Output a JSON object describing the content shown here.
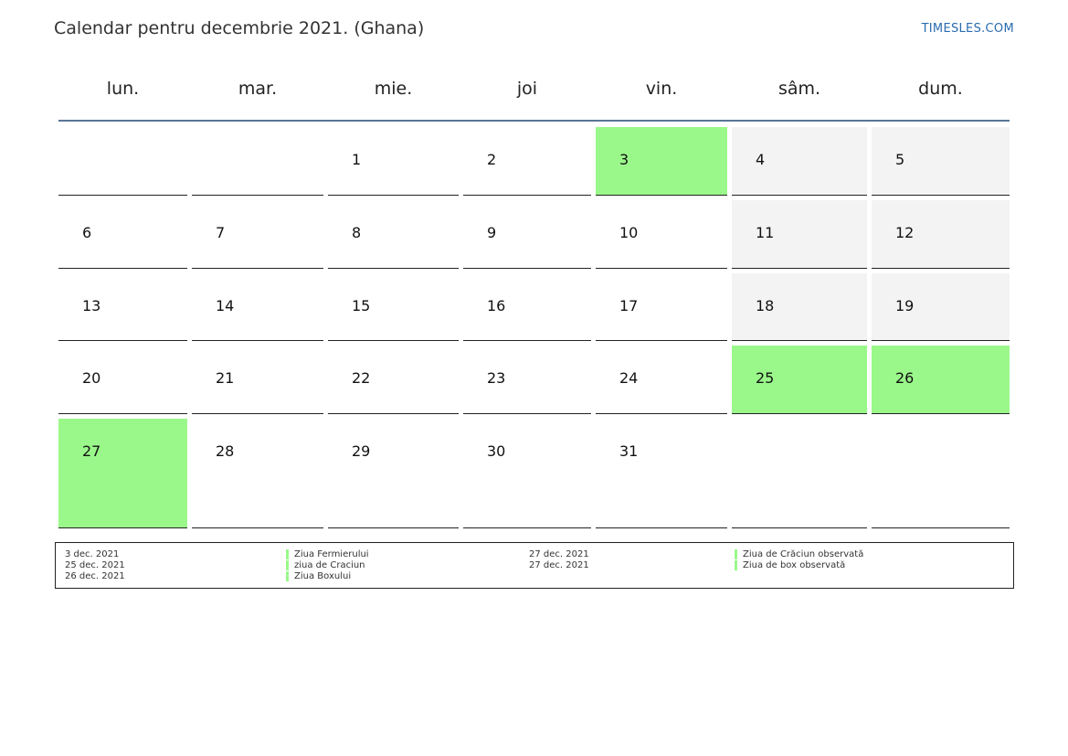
{
  "header": {
    "title": "Calendar pentru decembrie 2021. (Ghana)",
    "brand": "TIMESLES.COM"
  },
  "weekdays": [
    "lun.",
    "mar.",
    "mie.",
    "joi",
    "vin.",
    "sâm.",
    "dum."
  ],
  "weeks": [
    [
      "",
      "",
      "1",
      "2",
      "3",
      "4",
      "5"
    ],
    [
      "6",
      "7",
      "8",
      "9",
      "10",
      "11",
      "12"
    ],
    [
      "13",
      "14",
      "15",
      "16",
      "17",
      "18",
      "19"
    ],
    [
      "20",
      "21",
      "22",
      "23",
      "24",
      "25",
      "26"
    ],
    [
      "27",
      "28",
      "29",
      "30",
      "31",
      "",
      ""
    ]
  ],
  "holiday_days": [
    "3",
    "25",
    "26",
    "27"
  ],
  "colors": {
    "holiday": "#9af88a",
    "weekend": "#f3f3f3",
    "header_rule": "#5a7596"
  },
  "legend": {
    "left": [
      {
        "date": "3 dec. 2021",
        "name": "Ziua Fermierului"
      },
      {
        "date": "25 dec. 2021",
        "name": "ziua de Craciun"
      },
      {
        "date": "26 dec. 2021",
        "name": "Ziua Boxului"
      }
    ],
    "right": [
      {
        "date": "27 dec. 2021",
        "name": "Ziua de Crăciun observată"
      },
      {
        "date": "27 dec. 2021",
        "name": "Ziua de box observată"
      }
    ]
  }
}
